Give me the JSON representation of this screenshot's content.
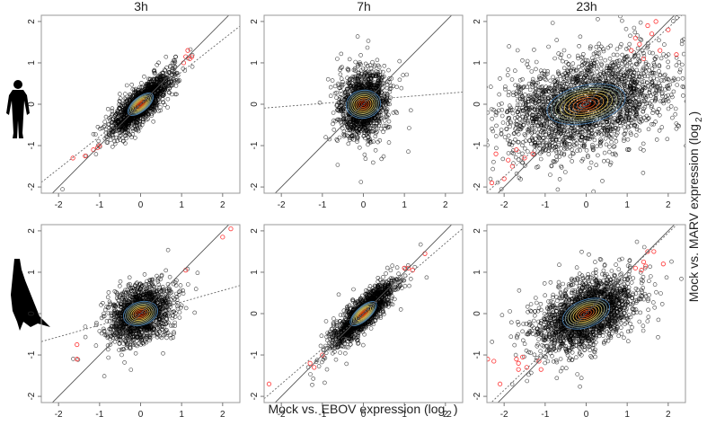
{
  "chart_data": {
    "type": "scatter",
    "xlabel": "Mock vs. EBOV expression (log",
    "xlabel_sub": "2",
    "xlabel_end": ")",
    "ylabel": "Mock vs. MARV expression (log",
    "ylabel_sub": "2",
    "ylabel_end": ")",
    "column_titles": [
      "3h",
      "7h",
      "23h"
    ],
    "row_labels": [
      "human",
      "bat"
    ],
    "xlim": [
      -2.42,
      2.42
    ],
    "ylim": [
      -2.15,
      2.15
    ],
    "ticks": [
      -2,
      -1,
      0,
      1,
      2
    ],
    "tick_labels": [
      "-2",
      "-1",
      "0",
      "1",
      "2"
    ],
    "identity_line": {
      "slope": 1,
      "intercept": 0,
      "style": "solid"
    },
    "colors": {
      "points": "#000000",
      "highlight": "#ff3333",
      "contour_low": "#4a7fb0",
      "contour_high": "#cc2200"
    },
    "panels": [
      {
        "row": 0,
        "col": 0,
        "n": 1800,
        "sd_x": 0.33,
        "sd_y": 0.33,
        "corr": 0.82,
        "fit_slope": 0.78,
        "fit_intercept": 0.0,
        "red_points": [
          [
            1.15,
            1.3
          ],
          [
            1.1,
            1.15
          ],
          [
            1.2,
            1.1
          ],
          [
            1.05,
            1.0
          ],
          [
            1.25,
            1.15
          ],
          [
            -1.0,
            -1.0
          ],
          [
            -1.05,
            -1.05
          ],
          [
            -1.15,
            -1.1
          ],
          [
            -1.35,
            -1.25
          ],
          [
            -1.65,
            -1.3
          ]
        ]
      },
      {
        "row": 0,
        "col": 1,
        "n": 1500,
        "sd_x": 0.27,
        "sd_y": 0.38,
        "corr": 0.12,
        "fit_slope": 0.08,
        "fit_intercept": 0.1,
        "red_points": []
      },
      {
        "row": 0,
        "col": 2,
        "n": 2600,
        "sd_x": 0.95,
        "sd_y": 0.55,
        "corr": 0.38,
        "fit_slope": 0.9,
        "fit_intercept": 0.05,
        "red_points": [
          [
            1.2,
            1.6
          ],
          [
            1.5,
            1.9
          ],
          [
            1.8,
            1.3
          ],
          [
            1.4,
            1.1
          ],
          [
            2.0,
            1.8
          ],
          [
            1.1,
            1.3
          ],
          [
            1.6,
            1.7
          ],
          [
            2.2,
            1.2
          ],
          [
            1.7,
            2.0
          ],
          [
            1.3,
            1.45
          ],
          [
            -1.8,
            -1.5
          ],
          [
            -2.0,
            -1.8
          ],
          [
            -1.5,
            -1.3
          ],
          [
            -2.2,
            -1.2
          ],
          [
            -1.7,
            -1.1
          ],
          [
            -2.3,
            -1.9
          ],
          [
            -1.3,
            -1.2
          ],
          [
            -1.9,
            -1.35
          ]
        ]
      },
      {
        "row": 1,
        "col": 0,
        "n": 1600,
        "sd_x": 0.35,
        "sd_y": 0.33,
        "corr": 0.3,
        "fit_slope": 0.28,
        "fit_intercept": 0.0,
        "red_points": [
          [
            2.2,
            2.05
          ],
          [
            2.0,
            1.85
          ],
          [
            1.1,
            1.05
          ],
          [
            -1.55,
            -0.75
          ],
          [
            -1.55,
            -1.1
          ]
        ]
      },
      {
        "row": 1,
        "col": 1,
        "n": 1800,
        "sd_x": 0.35,
        "sd_y": 0.36,
        "corr": 0.86,
        "fit_slope": 0.85,
        "fit_intercept": 0.0,
        "red_points": [
          [
            -1.3,
            -1.2
          ],
          [
            -1.0,
            -1.0
          ],
          [
            -1.2,
            -1.3
          ],
          [
            1.1,
            1.1
          ],
          [
            1.2,
            1.05
          ],
          [
            1.0,
            1.1
          ],
          [
            1.5,
            1.45
          ],
          [
            -2.3,
            -1.7
          ]
        ]
      },
      {
        "row": 1,
        "col": 2,
        "n": 2200,
        "sd_x": 0.55,
        "sd_y": 0.42,
        "corr": 0.5,
        "fit_slope": 0.95,
        "fit_intercept": 0.05,
        "red_points": [
          [
            -2.4,
            -1.1
          ],
          [
            -2.25,
            -1.15
          ],
          [
            -1.7,
            -1.1
          ],
          [
            -1.65,
            -1.2
          ],
          [
            -1.55,
            -1.05
          ],
          [
            -1.65,
            -1.35
          ],
          [
            -1.45,
            -1.3
          ],
          [
            -1.1,
            -1.35
          ],
          [
            -1.15,
            -1.15
          ],
          [
            -2.1,
            -1.7
          ],
          [
            1.2,
            1.1
          ],
          [
            1.35,
            1.05
          ],
          [
            1.4,
            1.25
          ],
          [
            1.5,
            1.5
          ],
          [
            1.65,
            1.5
          ],
          [
            1.88,
            1.2
          ],
          [
            1.45,
            1.15
          ]
        ]
      }
    ]
  }
}
